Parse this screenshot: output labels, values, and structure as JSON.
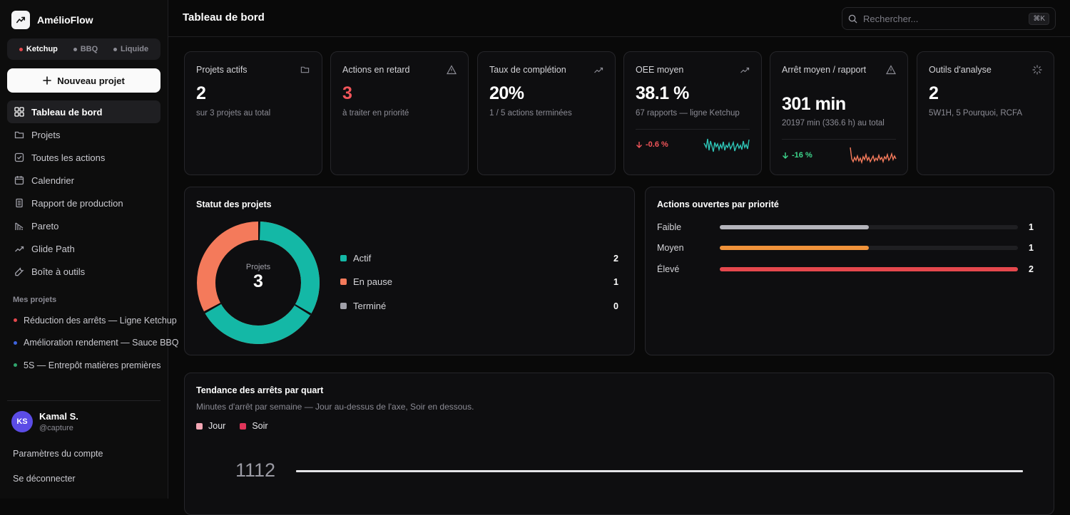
{
  "brand": {
    "name": "AmélioFlow"
  },
  "lines": [
    {
      "label": "Ketchup",
      "color": "#e5484d",
      "active": true
    },
    {
      "label": "BBQ",
      "color": "#8b8b94",
      "active": false
    },
    {
      "label": "Liquide",
      "color": "#8b8b94",
      "active": false
    }
  ],
  "new_project_label": "Nouveau projet",
  "nav": [
    {
      "label": "Tableau de bord",
      "icon": "grid-icon",
      "active": true
    },
    {
      "label": "Projets",
      "icon": "folder-icon"
    },
    {
      "label": "Toutes les actions",
      "icon": "checkbox-icon"
    },
    {
      "label": "Calendrier",
      "icon": "calendar-icon"
    },
    {
      "label": "Rapport de production",
      "icon": "report-icon"
    },
    {
      "label": "Pareto",
      "icon": "pareto-icon"
    },
    {
      "label": "Glide Path",
      "icon": "trend-icon"
    },
    {
      "label": "Boîte à outils",
      "icon": "wrench-icon"
    }
  ],
  "my_projects_label": "Mes projets",
  "my_projects": [
    {
      "label": "Réduction des arrêts — Ligne Ketchup",
      "color": "#e5484d"
    },
    {
      "label": "Amélioration rendement — Sauce BBQ",
      "color": "#3e63dd"
    },
    {
      "label": "5S — Entrepôt matières premières",
      "color": "#30a46c"
    }
  ],
  "user": {
    "initials": "KS",
    "name": "Kamal S.",
    "handle": "@capture"
  },
  "account_settings": "Paramètres du compte",
  "logout": "Se déconnecter",
  "header": {
    "title": "Tableau de bord",
    "search_placeholder": "Rechercher...",
    "shortcut": "⌘K"
  },
  "stats": [
    {
      "title": "Projets actifs",
      "value": "2",
      "sub": "sur 3 projets au total",
      "icon": "folder-icon"
    },
    {
      "title": "Actions en retard",
      "value": "3",
      "sub": "à traiter en priorité",
      "icon": "warning-icon",
      "value_color": "#f2555a"
    },
    {
      "title": "Taux de complétion",
      "value": "20%",
      "sub": "1 / 5 actions terminées",
      "icon": "trend-up-icon"
    },
    {
      "title": "OEE moyen",
      "value": "38.1 %",
      "sub": "67 rapports — ligne Ketchup",
      "icon": "trend-up-icon",
      "delta": "-0.6 %",
      "delta_dir": "down",
      "delta_color": "#f2555a",
      "spark_color": "#2ec4b6"
    },
    {
      "title": "Arrêt moyen / rapport",
      "value": "301 min",
      "sub": "20197 min (336.6 h) au total",
      "icon": "warning-icon",
      "delta": "-16 %",
      "delta_dir": "down",
      "delta_color": "#3dd68c",
      "spark_color": "#f47a5b"
    },
    {
      "title": "Outils d'analyse",
      "value": "2",
      "sub": "5W1H, 5 Pourquoi, RCFA",
      "icon": "spinner-icon"
    }
  ],
  "project_status": {
    "title": "Statut des projets",
    "center_label": "Projets",
    "center_value": "3",
    "items": [
      {
        "label": "Actif",
        "value": "2",
        "color": "#14b8a6"
      },
      {
        "label": "En pause",
        "value": "1",
        "color": "#f47a5b"
      },
      {
        "label": "Terminé",
        "value": "0",
        "color": "#a1a1aa"
      }
    ]
  },
  "priority": {
    "title": "Actions ouvertes par priorité",
    "items": [
      {
        "label": "Faible",
        "value": "1",
        "fraction": 0.5,
        "color": "#b4b4bb"
      },
      {
        "label": "Moyen",
        "value": "1",
        "fraction": 0.5,
        "color": "#f0923a"
      },
      {
        "label": "Élevé",
        "value": "2",
        "fraction": 1.0,
        "color": "#e5484d"
      }
    ]
  },
  "trend": {
    "title": "Tendance des arrêts par quart",
    "subtitle": "Minutes d'arrêt par semaine — Jour au-dessus de l'axe, Soir en dessous.",
    "legend": [
      {
        "label": "Jour",
        "color": "#f4a6b4"
      },
      {
        "label": "Soir",
        "color": "#e0355a"
      }
    ],
    "axis_label": "1112"
  }
}
